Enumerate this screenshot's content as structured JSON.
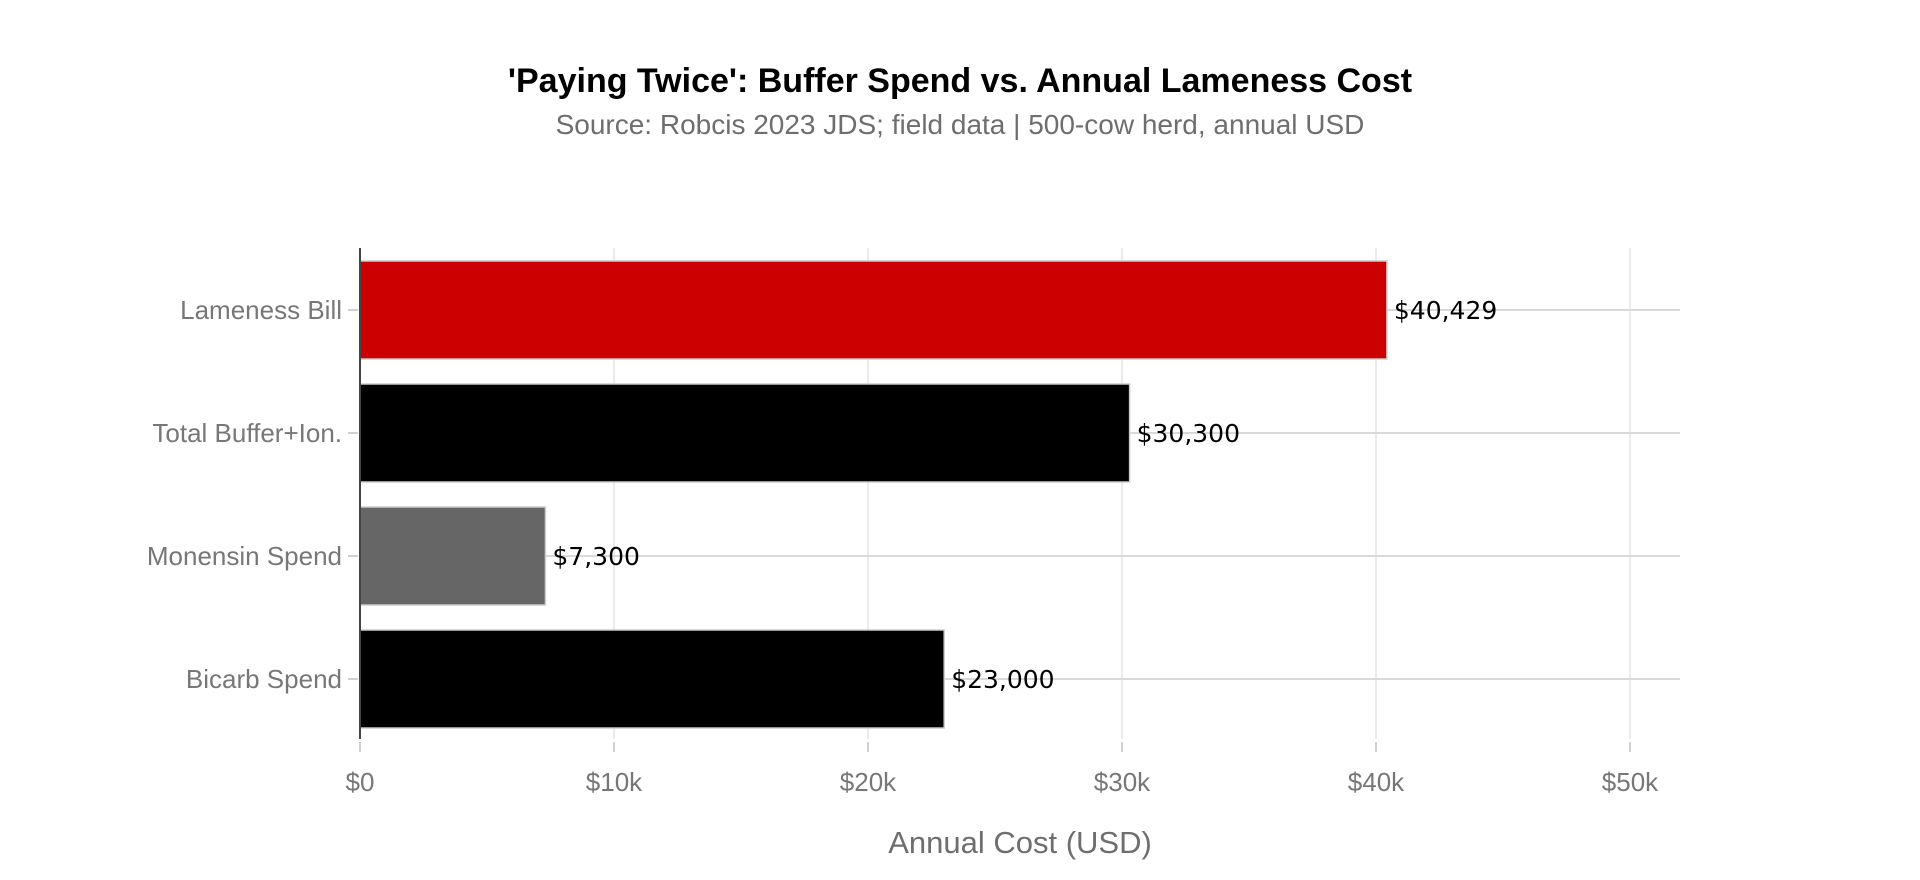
{
  "chart_data": {
    "type": "bar",
    "orientation": "horizontal",
    "title": "'Paying Twice': Buffer Spend vs. Annual Lameness Cost",
    "subtitle": "Source: Robcis 2023 JDS; field data | 500-cow herd, annual USD",
    "xlabel": "Annual Cost (USD)",
    "ylabel": "",
    "categories": [
      "Lameness Bill",
      "Total Buffer+Ion.",
      "Monensin Spend",
      "Bicarb Spend"
    ],
    "values": [
      40429,
      30300,
      7300,
      23000
    ],
    "value_labels": [
      "$40,429",
      "$30,300",
      "$7,300",
      "$23,000"
    ],
    "colors": [
      "#cc0000",
      "#000000",
      "#666666",
      "#000000"
    ],
    "xlim": [
      0,
      52000
    ],
    "x_ticks": [
      0,
      10000,
      20000,
      30000,
      40000,
      50000
    ],
    "x_tick_labels": [
      "$0",
      "$10k",
      "$20k",
      "$30k",
      "$40k",
      "$50k"
    ],
    "grid": true,
    "legend": "none"
  }
}
